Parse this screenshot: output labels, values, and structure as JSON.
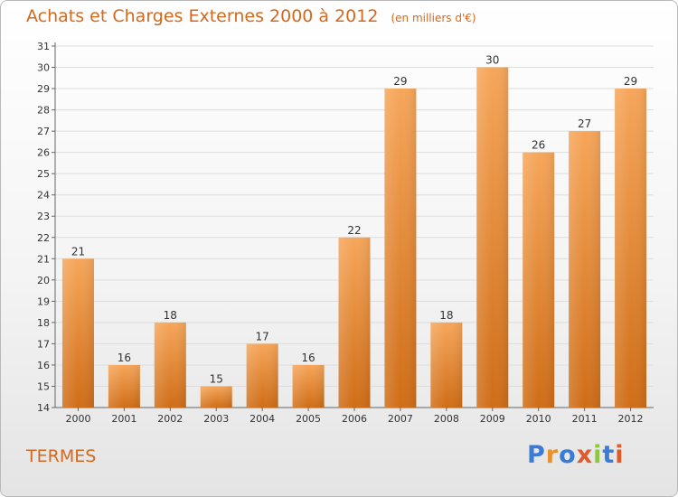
{
  "header": {
    "title": "Achats et Charges Externes 2000 à 2012",
    "subtitle": "(en milliers d'€)"
  },
  "footer": {
    "commune": "TERMES",
    "logo_letters": [
      "P",
      "r",
      "o",
      "x",
      "i",
      "t",
      "i"
    ],
    "logo_colors": [
      "#3a7bd5",
      "#e8912d",
      "#3a7bd5",
      "#e05a2a",
      "#8dc63f",
      "#3a7bd5",
      "#e05a2a"
    ]
  },
  "colors": {
    "title": "#d2691e",
    "bar_top": "#f6a65a",
    "bar_bottom": "#cf6d17",
    "grid": "#dddddd"
  },
  "chart_data": {
    "type": "bar",
    "title": "Achats et Charges Externes 2000 à 2012",
    "subtitle": "(en milliers d'€)",
    "categories": [
      "2000",
      "2001",
      "2002",
      "2003",
      "2004",
      "2005",
      "2006",
      "2007",
      "2008",
      "2009",
      "2010",
      "2011",
      "2012"
    ],
    "values": [
      21,
      16,
      18,
      15,
      17,
      16,
      22,
      29,
      18,
      30,
      26,
      27,
      29
    ],
    "ylim": [
      14,
      31
    ],
    "yticks": [
      14,
      15,
      16,
      17,
      18,
      19,
      20,
      21,
      22,
      23,
      24,
      25,
      26,
      27,
      28,
      29,
      30,
      31
    ],
    "xlabel": "",
    "ylabel": "",
    "grid": true,
    "data_labels": true
  }
}
